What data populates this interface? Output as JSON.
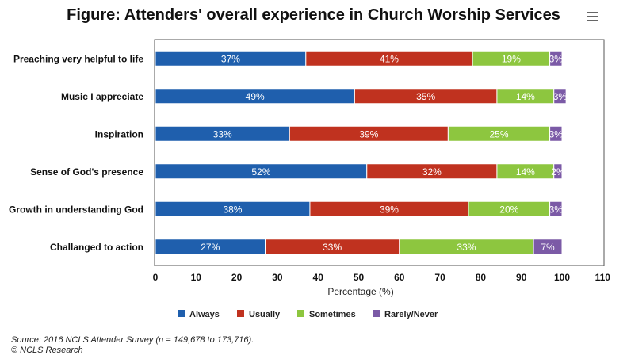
{
  "title": "Figure: Attenders' overall experience in Church Worship Services",
  "menu_icon": "hamburger-menu-icon",
  "source_lines": [
    "Source: 2016 NCLS Attender Survey (n = 149,678 to 173,716).",
    "© NCLS Research"
  ],
  "chart_data": {
    "type": "bar",
    "orientation": "horizontal",
    "stacked": true,
    "categories": [
      "Preaching very helpful to life",
      "Music I appreciate",
      "Inspiration",
      "Sense of God's presence",
      "Growth in understanding God",
      "Challanged to action"
    ],
    "series": [
      {
        "name": "Always",
        "color": "#1f5fad",
        "values": [
          37,
          49,
          33,
          52,
          38,
          27
        ]
      },
      {
        "name": "Usually",
        "color": "#c0321f",
        "values": [
          41,
          35,
          39,
          32,
          39,
          33
        ]
      },
      {
        "name": "Sometimes",
        "color": "#8dc63f",
        "values": [
          19,
          14,
          25,
          14,
          20,
          33
        ]
      },
      {
        "name": "Rarely/Never",
        "color": "#7b5aa6",
        "values": [
          3,
          3,
          3,
          2,
          3,
          7
        ]
      }
    ],
    "data_labels": [
      [
        "37%",
        "49%",
        "33%",
        "52%",
        "38%",
        "27%"
      ],
      [
        "41%",
        "35%",
        "39%",
        "32%",
        "39%",
        "33%"
      ],
      [
        "19%",
        "14%",
        "25%",
        "14%",
        "20%",
        "33%"
      ],
      [
        "3%",
        "3%",
        "3%",
        "2%",
        "3%",
        "7%"
      ]
    ],
    "xlabel": "Percentage (%)",
    "ylabel": "",
    "xlim": [
      0,
      110
    ],
    "x_ticks": [
      0,
      10,
      20,
      30,
      40,
      50,
      60,
      70,
      80,
      90,
      100,
      110
    ],
    "grid": false,
    "legend_position": "bottom"
  }
}
